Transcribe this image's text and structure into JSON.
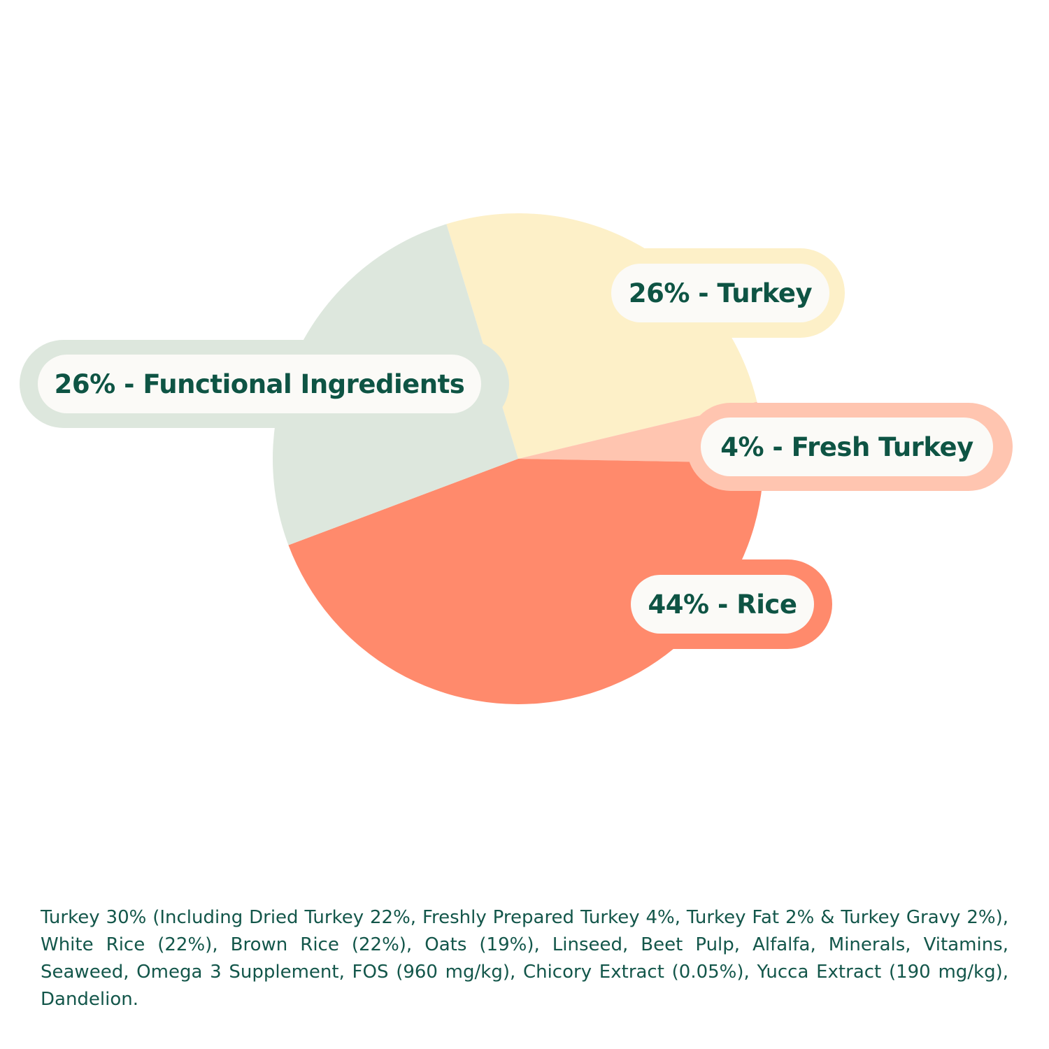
{
  "chart_data": {
    "type": "pie",
    "categories": [
      "Turkey",
      "Fresh Turkey",
      "Rice",
      "Functional Ingredients"
    ],
    "values": [
      26,
      4,
      44,
      26
    ],
    "colors": [
      "#fdf0c8",
      "#ffc5b0",
      "#ff8a6c",
      "#dde7dd"
    ],
    "labels": [
      "26% - Turkey",
      "4% - Fresh  Turkey",
      "44% - Rice",
      "26% - Functional Ingredients"
    ],
    "label_colors": {
      "text": "#0e5444",
      "pill_background": "#fbfaf7"
    }
  },
  "ingredients": {
    "text": "Turkey 30% (Including Dried Turkey 22%, Freshly Prepared Turkey 4%, Turkey Fat 2% & Turkey Gravy 2%), White Rice (22%), Brown Rice (22%), Oats (19%), Linseed, Beet Pulp, Alfalfa, Minerals, Vitamins, Seaweed, Omega 3 Supplement, FOS (960 mg/kg), Chicory Extract (0.05%), Yucca Extract (190 mg/kg), Dandelion."
  }
}
